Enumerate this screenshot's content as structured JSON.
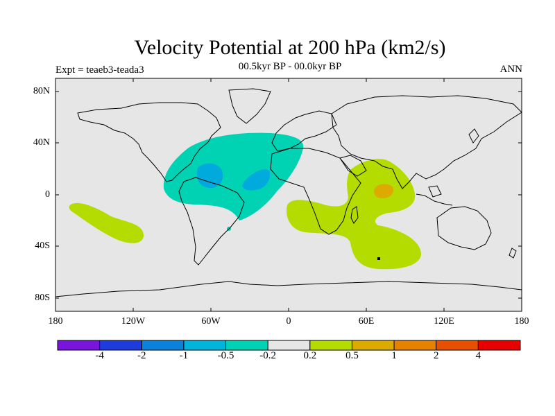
{
  "title": "Velocity Potential at 200 hPa (km2/s)",
  "subtitle": "00.5kyr BP - 00.0kyr BP",
  "left_label": "Expt = teaeb3-teada3",
  "right_label": "ANN",
  "colors": {
    "background": "#e6e6e6",
    "coast": "#000000",
    "neg_0_5": "#00d2b4",
    "neg_1": "#00aadc",
    "pos_0_2": "#b4dc00",
    "pos_0_5": "#dcaa00",
    "pos_1": "#e68200"
  },
  "map": {
    "projection": "cylindrical-equidistant",
    "lon_range": [
      -180,
      180
    ],
    "lat_range": [
      -90,
      90
    ],
    "lat_ticks": [
      "80N",
      "40N",
      "0",
      "40S",
      "80S"
    ],
    "lon_ticks": [
      "180",
      "120W",
      "60W",
      "0",
      "60E",
      "120E",
      "180"
    ],
    "anomaly_regions": [
      {
        "name": "Atlantic negative anomaly",
        "level": -0.2,
        "color": "#00d2b4"
      },
      {
        "name": "Caribbean core",
        "level": -0.5,
        "color": "#00aadc"
      },
      {
        "name": "Equatorial Atlantic core",
        "level": -0.5,
        "color": "#00aadc"
      },
      {
        "name": "Indian Ocean positive anomaly",
        "level": 0.2,
        "color": "#b4dc00"
      },
      {
        "name": "Southern Indian Ocean positive anomaly",
        "level": 0.2,
        "color": "#b4dc00"
      },
      {
        "name": "South Pacific positive anomaly",
        "level": 0.2,
        "color": "#b4dc00"
      },
      {
        "name": "Central Indian Ocean core",
        "level": 0.5,
        "color": "#dcaa00"
      }
    ]
  },
  "colorbar": {
    "colors": [
      "#7814dc",
      "#1e3cdc",
      "#0a82dc",
      "#00b4dc",
      "#00d2b4",
      "#e6e6e6",
      "#b4dc00",
      "#dcaa00",
      "#e68200",
      "#e65000",
      "#e60000"
    ],
    "labels": [
      "-4",
      "-2",
      "-1",
      "-0.5",
      "-0.2",
      "0.2",
      "0.5",
      "1",
      "2",
      "4"
    ]
  }
}
